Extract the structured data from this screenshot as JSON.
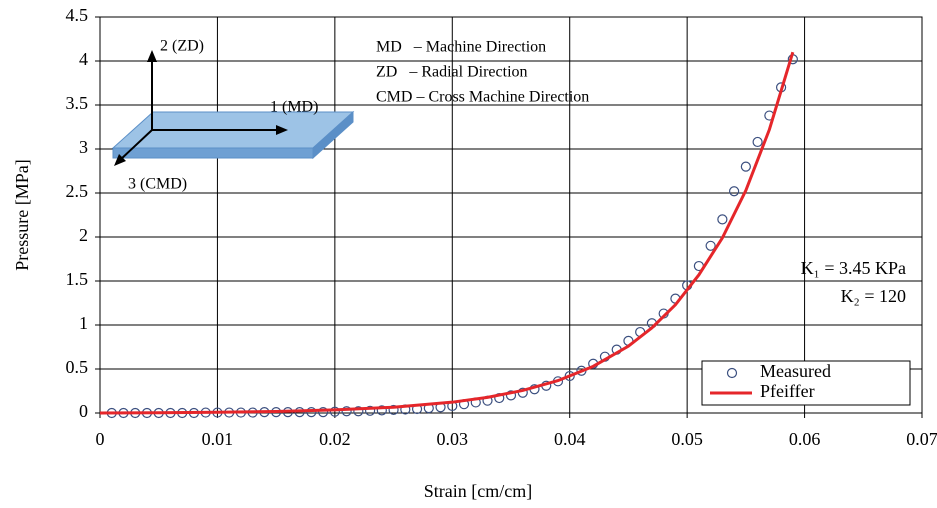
{
  "chart_data": {
    "type": "scatter",
    "xlabel": "Strain [cm/cm]",
    "ylabel": "Pressure [MPa]",
    "xlim": [
      0,
      0.07
    ],
    "ylim": [
      0,
      4.5
    ],
    "xticks": [
      0,
      0.01,
      0.02,
      0.03,
      0.04,
      0.05,
      0.06,
      0.07
    ],
    "yticks": [
      0,
      0.5,
      1,
      1.5,
      2,
      2.5,
      3,
      3.5,
      4,
      4.5
    ],
    "grid": true,
    "legend": "lower right",
    "annotations": [
      "2 (ZD)",
      "1 (MD)",
      "3 (CMD)",
      "MD   – Machine Direction",
      "ZD   – Radial Direction",
      "CMD – Cross Machine Direction",
      "K₁ = 3.45 KPa",
      "K₂ = 120"
    ],
    "series": [
      {
        "name": "Measured",
        "style": "markers",
        "color": "#3b4f7f",
        "x": [
          0.001,
          0.002,
          0.003,
          0.004,
          0.005,
          0.006,
          0.007,
          0.008,
          0.009,
          0.01,
          0.011,
          0.012,
          0.013,
          0.014,
          0.015,
          0.016,
          0.017,
          0.018,
          0.019,
          0.02,
          0.021,
          0.022,
          0.023,
          0.024,
          0.025,
          0.026,
          0.027,
          0.028,
          0.029,
          0.03,
          0.031,
          0.032,
          0.033,
          0.034,
          0.035,
          0.036,
          0.037,
          0.038,
          0.039,
          0.04,
          0.041,
          0.042,
          0.043,
          0.044,
          0.045,
          0.046,
          0.047,
          0.048,
          0.049,
          0.05,
          0.051,
          0.052,
          0.053,
          0.054,
          0.055,
          0.056,
          0.057,
          0.058,
          0.059
        ],
        "values": [
          0,
          0,
          0,
          0,
          0,
          0,
          0,
          0,
          0.005,
          0.005,
          0.005,
          0.005,
          0.005,
          0.01,
          0.01,
          0.01,
          0.01,
          0.01,
          0.01,
          0.015,
          0.02,
          0.02,
          0.025,
          0.03,
          0.035,
          0.04,
          0.045,
          0.055,
          0.065,
          0.08,
          0.1,
          0.12,
          0.14,
          0.17,
          0.2,
          0.23,
          0.27,
          0.31,
          0.36,
          0.42,
          0.48,
          0.56,
          0.64,
          0.72,
          0.82,
          0.92,
          1.02,
          1.13,
          1.3,
          1.45,
          1.67,
          1.9,
          2.2,
          2.52,
          2.8,
          3.08,
          3.38,
          3.7,
          4.02
        ]
      },
      {
        "name": "Pfeiffer",
        "style": "line",
        "color": "#e5262a",
        "x": [
          0,
          0.005,
          0.01,
          0.015,
          0.02,
          0.025,
          0.03,
          0.033,
          0.036,
          0.039,
          0.042,
          0.045,
          0.047,
          0.049,
          0.051,
          0.053,
          0.055,
          0.057,
          0.059
        ],
        "values": [
          0,
          0.0028,
          0.008,
          0.017,
          0.035,
          0.066,
          0.123,
          0.178,
          0.256,
          0.368,
          0.53,
          0.76,
          0.968,
          1.23,
          1.57,
          1.99,
          2.53,
          3.22,
          4.1
        ]
      }
    ]
  }
}
